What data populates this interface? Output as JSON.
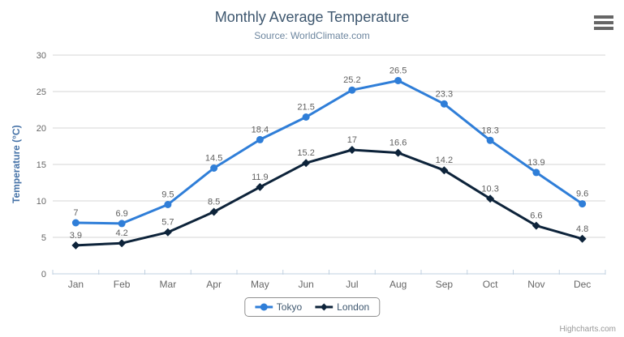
{
  "chart": {
    "title": "Monthly Average Temperature",
    "subtitle": "Source: WorldClimate.com",
    "y_axis_title": "Temperature (°C)",
    "credits": "Highcharts.com"
  },
  "chart_data": {
    "type": "line",
    "title": "Monthly Average Temperature",
    "subtitle": "Source: WorldClimate.com",
    "categories": [
      "Jan",
      "Feb",
      "Mar",
      "Apr",
      "May",
      "Jun",
      "Jul",
      "Aug",
      "Sep",
      "Oct",
      "Nov",
      "Dec"
    ],
    "series": [
      {
        "name": "Tokyo",
        "color": "#2f7ed8",
        "marker": "circle",
        "values": [
          7,
          6.9,
          9.5,
          14.5,
          18.4,
          21.5,
          25.2,
          26.5,
          23.3,
          18.3,
          13.9,
          9.6
        ]
      },
      {
        "name": "London",
        "color": "#0d233a",
        "marker": "diamond",
        "values": [
          3.9,
          4.2,
          5.7,
          8.5,
          11.9,
          15.2,
          17,
          16.6,
          14.2,
          10.3,
          6.6,
          4.8
        ]
      }
    ],
    "xlabel": "",
    "ylabel": "Temperature (°C)",
    "ylim": [
      0,
      30
    ],
    "ytick_step": 5,
    "grid": true,
    "data_labels": true,
    "legend_position": "bottom"
  },
  "styles": {
    "background": "#ffffff",
    "title_color": "#3e576f",
    "subtitle_color": "#6d869f",
    "axis_label_color": "#666666",
    "axis_title_color": "#4572a7",
    "data_label_color": "#606060",
    "grid_color": "#d4d4d4",
    "axis_line_color": "#c0d0e0",
    "legend_text_color": "#3e576f",
    "legend_border_color": "#909090",
    "credits_color": "#999999",
    "menu_icon_color": "#666666"
  }
}
